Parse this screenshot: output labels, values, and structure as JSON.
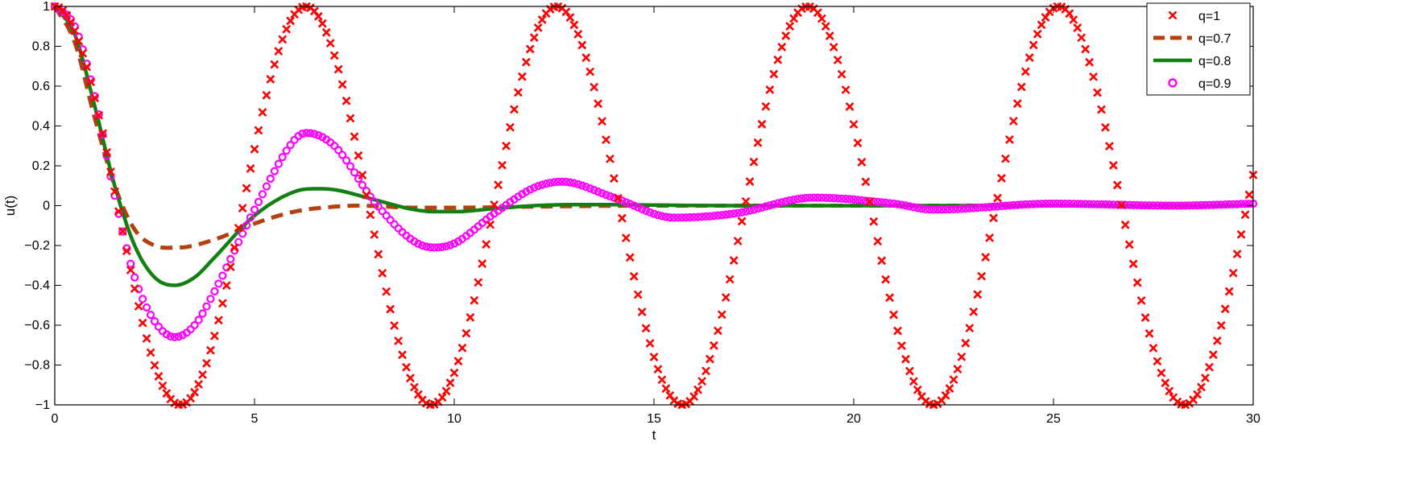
{
  "chart_data": {
    "type": "line",
    "xlabel": "t",
    "ylabel": "u(t)",
    "xlim": [
      0,
      30
    ],
    "ylim": [
      -1,
      1
    ],
    "xticks": [
      0,
      5,
      10,
      15,
      20,
      25,
      30
    ],
    "yticks": [
      -1,
      -0.8,
      -0.6,
      -0.4,
      -0.2,
      0,
      0.2,
      0.4,
      0.6,
      0.8,
      1
    ],
    "xtick_labels": [
      "0",
      "5",
      "10",
      "15",
      "20",
      "25",
      "30"
    ],
    "ytick_labels": [
      "−1",
      "−0.8",
      "−0.6",
      "−0.4",
      "−0.2",
      "0",
      "0.2",
      "0.4",
      "0.6",
      "0.8",
      "1"
    ],
    "grid": false,
    "legend_position": "top-right",
    "series": [
      {
        "name": "q=1",
        "style": "x-markers",
        "color": "#ff0000",
        "x": [
          0,
          1.5,
          3.14,
          4.71,
          6.28,
          7.85,
          9.42,
          10.99,
          12.57,
          14.14,
          15.71,
          17.28,
          18.85,
          20.42,
          21.99,
          23.56,
          25.13,
          26.7,
          28.27,
          29.85,
          30
        ],
        "y": [
          1,
          0.07,
          -1,
          0,
          1,
          0,
          -1,
          0,
          1,
          0,
          -1,
          0,
          1,
          0,
          -1,
          0,
          1,
          0,
          -1,
          0,
          0.15
        ]
      },
      {
        "name": "q=0.7",
        "style": "dashed",
        "color": "#b5400f",
        "x": [
          0,
          0.5,
          1,
          1.5,
          2,
          2.5,
          3.1,
          4,
          5,
          6,
          7,
          7.6,
          9,
          10,
          12,
          15,
          20,
          25,
          30
        ],
        "y": [
          1,
          0.82,
          0.44,
          0.1,
          -0.12,
          -0.2,
          -0.21,
          -0.17,
          -0.09,
          -0.03,
          -0.005,
          0,
          -0.01,
          -0.01,
          -0.005,
          0,
          0,
          0,
          0
        ]
      },
      {
        "name": "q=0.8",
        "style": "solid",
        "color": "#118011",
        "x": [
          0,
          0.5,
          1,
          1.5,
          2,
          2.5,
          3,
          3.5,
          4,
          5,
          6,
          6.5,
          7,
          8,
          9,
          9.5,
          10,
          11,
          12,
          13,
          14,
          15,
          17,
          20,
          25,
          30
        ],
        "y": [
          1,
          0.86,
          0.5,
          0.1,
          -0.2,
          -0.36,
          -0.4,
          -0.36,
          -0.26,
          -0.05,
          0.07,
          0.085,
          0.08,
          0.03,
          -0.02,
          -0.03,
          -0.03,
          -0.015,
          0,
          0.005,
          0.005,
          0.003,
          0,
          0,
          0,
          0
        ]
      },
      {
        "name": "q=0.9",
        "style": "o-markers",
        "color": "#ff00ff",
        "x": [
          0,
          0.5,
          1,
          1.5,
          2,
          2.5,
          3,
          3.5,
          4,
          5,
          6,
          6.3,
          7,
          8,
          9,
          9.5,
          10,
          11,
          12,
          12.7,
          14,
          15.5,
          17,
          19,
          21,
          22,
          25,
          28,
          30
        ],
        "y": [
          1,
          0.9,
          0.55,
          0.05,
          -0.36,
          -0.58,
          -0.66,
          -0.6,
          -0.43,
          -0.02,
          0.33,
          0.365,
          0.3,
          0.02,
          -0.18,
          -0.21,
          -0.19,
          -0.04,
          0.09,
          0.12,
          0.04,
          -0.06,
          -0.04,
          0.04,
          0.01,
          -0.02,
          0.01,
          0,
          0.01
        ]
      }
    ]
  }
}
